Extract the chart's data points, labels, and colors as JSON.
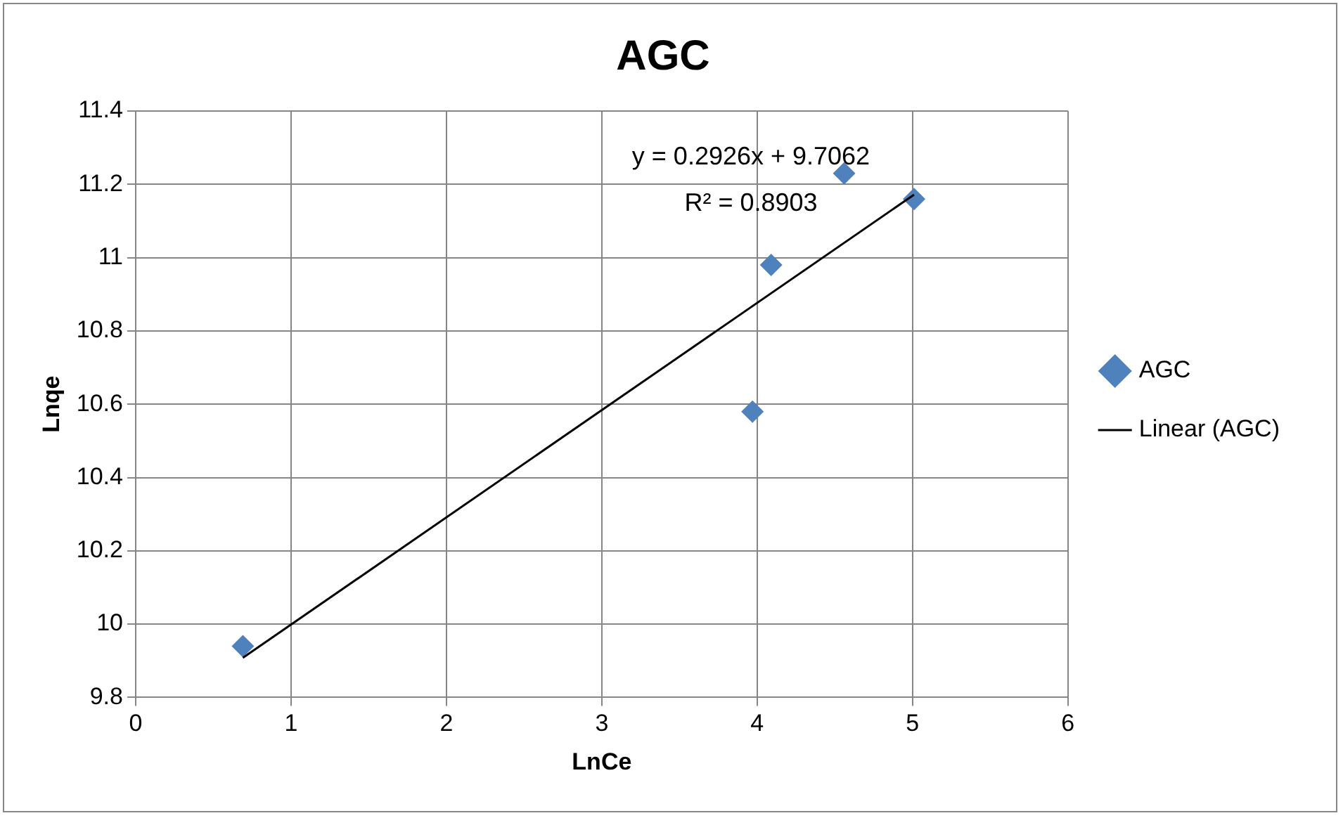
{
  "chart_data": {
    "type": "scatter",
    "title": "AGC",
    "xlabel": "LnCe",
    "ylabel": "Lnqe",
    "xlim": [
      0,
      6
    ],
    "xticks": [
      0,
      1,
      2,
      3,
      4,
      5,
      6
    ],
    "ylim": [
      9.8,
      11.4
    ],
    "yticks": [
      {
        "value": 9.8,
        "label": "9.8"
      },
      {
        "value": 10,
        "label": "10"
      },
      {
        "value": 10.2,
        "label": "10.2"
      },
      {
        "value": 10.4,
        "label": "10.4"
      },
      {
        "value": 10.6,
        "label": "10.6"
      },
      {
        "value": 10.8,
        "label": "10.8"
      },
      {
        "value": 11,
        "label": "11"
      },
      {
        "value": 11.2,
        "label": "11.2"
      },
      {
        "value": 11.4,
        "label": "11.4"
      }
    ],
    "grid": true,
    "legend": "right",
    "marker": "diamond",
    "series": [
      {
        "name": "AGC",
        "type": "scatter",
        "color": "#4f81bd",
        "x": [
          0.69,
          3.97,
          4.09,
          4.56,
          5.01
        ],
        "values": [
          9.94,
          10.58,
          10.98,
          11.23,
          11.16
        ]
      },
      {
        "name": "Linear (AGC)",
        "type": "line",
        "color": "#000000",
        "marker": "none",
        "x": [
          0.69,
          5.01
        ],
        "values": [
          9.908,
          11.172
        ]
      }
    ],
    "annotations": [
      "y = 0.2926x + 9.7062",
      "R² = 0.8903"
    ]
  }
}
